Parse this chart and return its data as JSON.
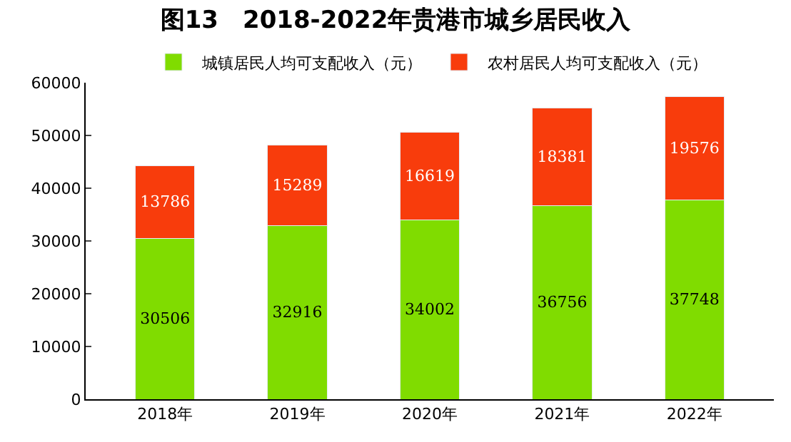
{
  "chart_data": {
    "type": "bar",
    "title": "图13　2018-2022年贵港市城乡居民收入",
    "categories": [
      "2018年",
      "2019年",
      "2020年",
      "2021年",
      "2022年"
    ],
    "stacked": true,
    "data_labels": true,
    "legend": "top",
    "ylim": [
      0,
      60000
    ],
    "yticks": [
      0,
      10000,
      20000,
      30000,
      40000,
      50000,
      60000
    ],
    "series": [
      {
        "name": "城镇居民人均可支配收入（元）",
        "color": "#80dc00",
        "values": [
          30506,
          32916,
          34002,
          36756,
          37748
        ]
      },
      {
        "name": "农村居民人均可支配收入（元）",
        "color": "#f83c0c",
        "values": [
          13786,
          15289,
          16619,
          18381,
          19576
        ]
      }
    ]
  }
}
